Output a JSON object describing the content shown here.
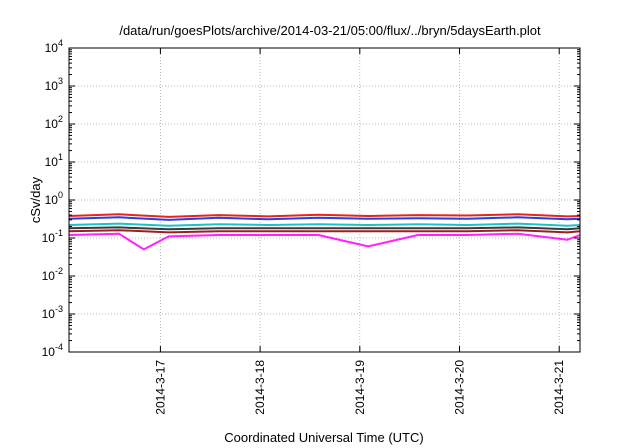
{
  "chart_data": {
    "type": "line",
    "title": "/data/run/goesPlots/archive/2014-03-21/05:00/flux/../bryn/5daysEarth.plot",
    "xlabel": "Coordinated Universal Time (UTC)",
    "ylabel": "cSv/day",
    "yscale": "log",
    "ylim": [
      0.0001,
      10000
    ],
    "xlim": [
      "2014-03-16 02:00",
      "2014-03-21 05:00"
    ],
    "grid": true,
    "x_tick_labels": [
      "2014-3-17",
      "2014-3-18",
      "2014-3-19",
      "2014-3-20",
      "2014-3-21"
    ],
    "x_ticks": [
      "2014-03-17 00:00",
      "2014-03-18 00:00",
      "2014-03-19 00:00",
      "2014-03-20 00:00",
      "2014-03-21 00:00"
    ],
    "y_ticks": [
      {
        "value": 0.0001,
        "base": "10",
        "exp": "-4"
      },
      {
        "value": 0.001,
        "base": "10",
        "exp": "-3"
      },
      {
        "value": 0.01,
        "base": "10",
        "exp": "-2"
      },
      {
        "value": 0.1,
        "base": "10",
        "exp": "-1"
      },
      {
        "value": 1,
        "base": "10",
        "exp": "0"
      },
      {
        "value": 10,
        "base": "10",
        "exp": "1"
      },
      {
        "value": 100,
        "base": "10",
        "exp": "2"
      },
      {
        "value": 1000,
        "base": "10",
        "exp": "3"
      },
      {
        "value": 10000,
        "base": "10",
        "exp": "4"
      }
    ],
    "series": [
      {
        "color": "#e8231f",
        "x": [
          "2014-03-16 02:00",
          "2014-03-16 14:00",
          "2014-03-17 02:00",
          "2014-03-17 14:00",
          "2014-03-18 02:00",
          "2014-03-18 14:00",
          "2014-03-19 02:00",
          "2014-03-19 14:00",
          "2014-03-20 02:00",
          "2014-03-20 14:00",
          "2014-03-21 02:00",
          "2014-03-21 05:00"
        ],
        "values": [
          0.38,
          0.42,
          0.36,
          0.4,
          0.37,
          0.41,
          0.38,
          0.4,
          0.39,
          0.42,
          0.37,
          0.38
        ]
      },
      {
        "color": "#2a3fe0",
        "x": [
          "2014-03-16 02:00",
          "2014-03-16 14:00",
          "2014-03-17 02:00",
          "2014-03-17 14:00",
          "2014-03-18 02:00",
          "2014-03-18 14:00",
          "2014-03-19 02:00",
          "2014-03-19 14:00",
          "2014-03-20 02:00",
          "2014-03-20 14:00",
          "2014-03-21 02:00",
          "2014-03-21 05:00"
        ],
        "values": [
          0.32,
          0.35,
          0.3,
          0.34,
          0.31,
          0.34,
          0.32,
          0.33,
          0.32,
          0.35,
          0.31,
          0.32
        ]
      },
      {
        "color": "#19c2c8",
        "x": [
          "2014-03-16 02:00",
          "2014-03-16 14:00",
          "2014-03-17 02:00",
          "2014-03-17 14:00",
          "2014-03-18 02:00",
          "2014-03-18 14:00",
          "2014-03-19 02:00",
          "2014-03-19 14:00",
          "2014-03-20 02:00",
          "2014-03-20 14:00",
          "2014-03-21 02:00",
          "2014-03-21 05:00"
        ],
        "values": [
          0.22,
          0.24,
          0.21,
          0.23,
          0.22,
          0.23,
          0.22,
          0.23,
          0.22,
          0.24,
          0.21,
          0.22
        ]
      },
      {
        "color": "#3a3a3a",
        "x": [
          "2014-03-16 02:00",
          "2014-03-16 14:00",
          "2014-03-17 02:00",
          "2014-03-17 14:00",
          "2014-03-18 02:00",
          "2014-03-18 14:00",
          "2014-03-19 02:00",
          "2014-03-19 14:00",
          "2014-03-20 02:00",
          "2014-03-20 14:00",
          "2014-03-21 02:00",
          "2014-03-21 05:00"
        ],
        "values": [
          0.18,
          0.19,
          0.17,
          0.18,
          0.18,
          0.18,
          0.18,
          0.18,
          0.18,
          0.19,
          0.17,
          0.18
        ]
      },
      {
        "color": "#9a2020",
        "x": [
          "2014-03-16 02:00",
          "2014-03-16 14:00",
          "2014-03-17 02:00",
          "2014-03-17 14:00",
          "2014-03-18 02:00",
          "2014-03-18 14:00",
          "2014-03-19 02:00",
          "2014-03-19 14:00",
          "2014-03-20 02:00",
          "2014-03-20 14:00",
          "2014-03-21 02:00",
          "2014-03-21 05:00"
        ],
        "values": [
          0.15,
          0.16,
          0.14,
          0.15,
          0.15,
          0.15,
          0.15,
          0.15,
          0.15,
          0.16,
          0.14,
          0.15
        ]
      },
      {
        "color": "#ff22ff",
        "x": [
          "2014-03-16 02:00",
          "2014-03-16 14:00",
          "2014-03-16 20:00",
          "2014-03-17 02:00",
          "2014-03-17 14:00",
          "2014-03-18 02:00",
          "2014-03-18 14:00",
          "2014-03-19 02:00",
          "2014-03-19 14:00",
          "2014-03-20 02:00",
          "2014-03-20 14:00",
          "2014-03-21 02:00",
          "2014-03-21 05:00"
        ],
        "values": [
          0.12,
          0.13,
          0.05,
          0.11,
          0.12,
          0.12,
          0.12,
          0.06,
          0.12,
          0.12,
          0.13,
          0.09,
          0.12
        ]
      }
    ]
  }
}
